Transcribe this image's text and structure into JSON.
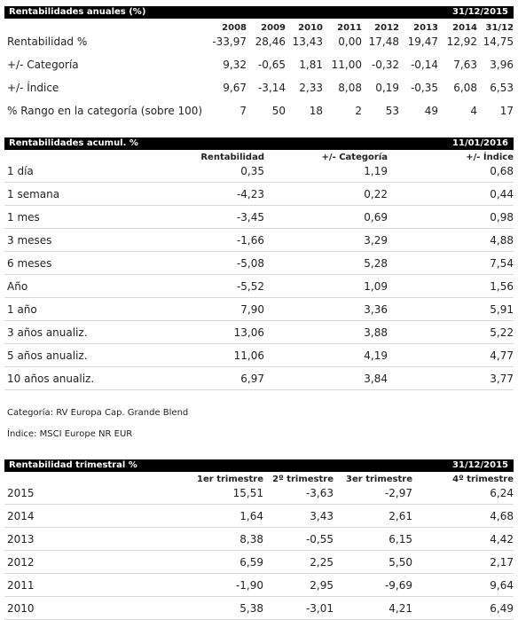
{
  "annual": {
    "title": "Rentabilidades anuales (%)",
    "date": "31/12/2015",
    "years": [
      "2008",
      "2009",
      "2010",
      "2011",
      "2012",
      "2013",
      "2014",
      "31/12"
    ],
    "rows": [
      {
        "label": "Rentabilidad %",
        "values": [
          "-33,97",
          "28,46",
          "13,43",
          "0,00",
          "17,48",
          "19,47",
          "12,92",
          "14,75"
        ]
      },
      {
        "label": "+/- Categoría",
        "values": [
          "9,32",
          "-0,65",
          "1,81",
          "11,00",
          "-0,32",
          "-0,14",
          "7,63",
          "3,96"
        ]
      },
      {
        "label": "+/- Índice",
        "values": [
          "9,67",
          "-3,14",
          "2,33",
          "8,08",
          "0,19",
          "-0,35",
          "6,08",
          "6,53"
        ]
      },
      {
        "label": "% Rango en la categoría (sobre 100)",
        "values": [
          "7",
          "50",
          "18",
          "2",
          "53",
          "49",
          "4",
          "17"
        ]
      }
    ]
  },
  "cumulative": {
    "title": "Rentabilidades acumul. %",
    "date": "11/01/2016",
    "headers": [
      "Rentabilidad",
      "+/- Categoría",
      "+/- Índice"
    ],
    "rows": [
      {
        "label": "1 día",
        "values": [
          "0,35",
          "1,19",
          "0,68"
        ]
      },
      {
        "label": "1 semana",
        "values": [
          "-4,23",
          "0,22",
          "0,44"
        ]
      },
      {
        "label": "1 mes",
        "values": [
          "-3,45",
          "0,69",
          "0,98"
        ]
      },
      {
        "label": "3 meses",
        "values": [
          "-1,66",
          "3,29",
          "4,88"
        ]
      },
      {
        "label": "6 meses",
        "values": [
          "-5,08",
          "5,28",
          "7,54"
        ]
      },
      {
        "label": "Año",
        "values": [
          "-5,52",
          "1,09",
          "1,56"
        ]
      },
      {
        "label": "1 año",
        "values": [
          "7,90",
          "3,36",
          "5,91"
        ]
      },
      {
        "label": "3 años anualiz.",
        "values": [
          "13,06",
          "3,88",
          "5,22"
        ]
      },
      {
        "label": "5 años anualiz.",
        "values": [
          "11,06",
          "4,19",
          "4,77"
        ]
      },
      {
        "label": "10 años anualiz.",
        "values": [
          "6,97",
          "3,84",
          "3,77"
        ]
      }
    ]
  },
  "notes": {
    "category": "Categoría: RV Europa Cap. Grande Blend",
    "index": "Índice: MSCI Europe NR EUR"
  },
  "quarterly": {
    "title": "Rentabilidad trimestral %",
    "date": "31/12/2015",
    "headers": [
      "1er trimestre",
      "2º trimestre",
      "3er trimestre",
      "4º trimestre"
    ],
    "rows": [
      {
        "label": "2015",
        "values": [
          "15,51",
          "-3,63",
          "-2,97",
          "6,24"
        ]
      },
      {
        "label": "2014",
        "values": [
          "1,64",
          "3,43",
          "2,61",
          "4,68"
        ]
      },
      {
        "label": "2013",
        "values": [
          "8,38",
          "-0,55",
          "6,15",
          "4,42"
        ]
      },
      {
        "label": "2012",
        "values": [
          "6,59",
          "2,25",
          "5,50",
          "2,17"
        ]
      },
      {
        "label": "2011",
        "values": [
          "-1,90",
          "2,95",
          "-9,69",
          "9,64"
        ]
      },
      {
        "label": "2010",
        "values": [
          "5,38",
          "-3,01",
          "4,21",
          "6,49"
        ]
      }
    ]
  }
}
